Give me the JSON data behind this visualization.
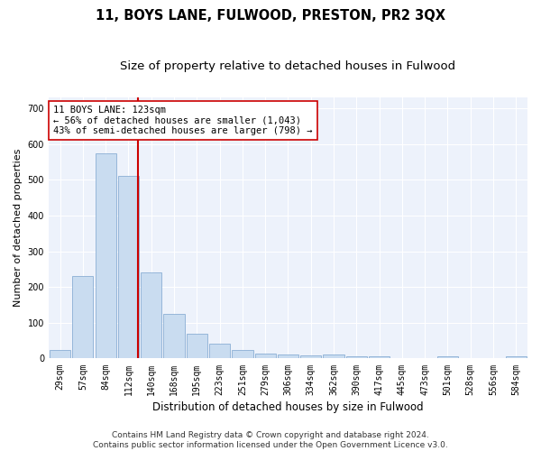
{
  "title": "11, BOYS LANE, FULWOOD, PRESTON, PR2 3QX",
  "subtitle": "Size of property relative to detached houses in Fulwood",
  "xlabel": "Distribution of detached houses by size in Fulwood",
  "ylabel": "Number of detached properties",
  "categories": [
    "29sqm",
    "57sqm",
    "84sqm",
    "112sqm",
    "140sqm",
    "168sqm",
    "195sqm",
    "223sqm",
    "251sqm",
    "279sqm",
    "306sqm",
    "334sqm",
    "362sqm",
    "390sqm",
    "417sqm",
    "445sqm",
    "473sqm",
    "501sqm",
    "528sqm",
    "556sqm",
    "584sqm"
  ],
  "values": [
    25,
    230,
    575,
    510,
    240,
    125,
    70,
    42,
    25,
    13,
    10,
    8,
    10,
    7,
    5,
    0,
    0,
    5,
    0,
    0,
    5
  ],
  "bar_color": "#c9dcf0",
  "bar_edge_color": "#8bafd4",
  "vline_x": 3.42,
  "vline_color": "#cc0000",
  "annotation_text": "11 BOYS LANE: 123sqm\n← 56% of detached houses are smaller (1,043)\n43% of semi-detached houses are larger (798) →",
  "annotation_box_color": "#ffffff",
  "annotation_box_edge": "#cc0000",
  "ylim": [
    0,
    730
  ],
  "yticks": [
    0,
    100,
    200,
    300,
    400,
    500,
    600,
    700
  ],
  "footer": "Contains HM Land Registry data © Crown copyright and database right 2024.\nContains public sector information licensed under the Open Government Licence v3.0.",
  "bg_color": "#edf2fb",
  "title_fontsize": 10.5,
  "subtitle_fontsize": 9.5,
  "xlabel_fontsize": 8.5,
  "ylabel_fontsize": 8,
  "tick_fontsize": 7,
  "footer_fontsize": 6.5,
  "annot_fontsize": 7.5
}
